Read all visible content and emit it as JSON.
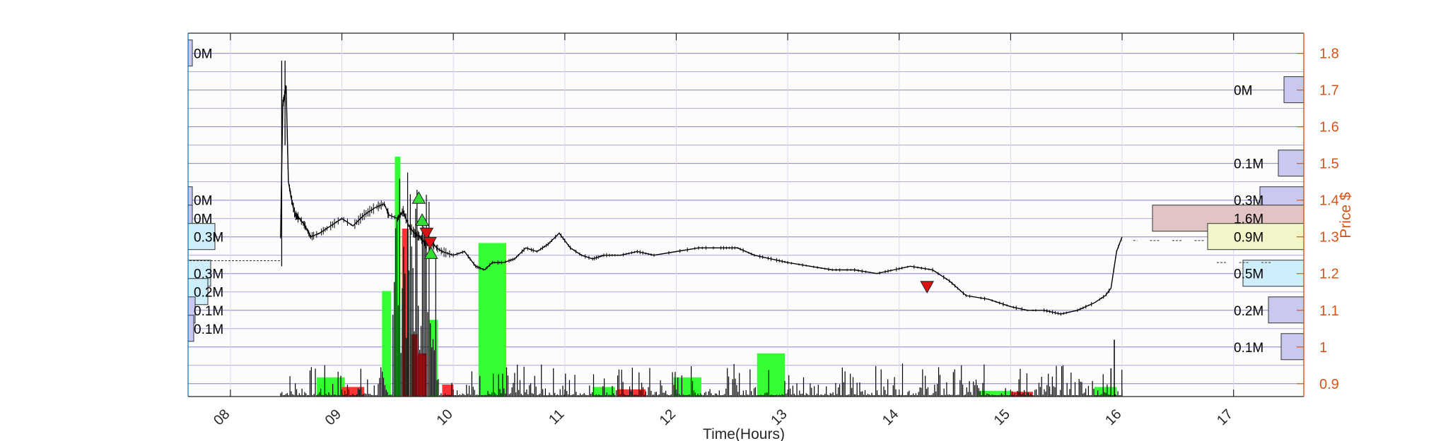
{
  "chart_data": {
    "type": "line",
    "xlabel": "Time(Hours)",
    "ylabel": "Price $",
    "xlim": [
      7.62,
      17.63
    ],
    "ylim": [
      0.865,
      1.855
    ],
    "x_ticks": [
      8,
      9,
      10,
      11,
      12,
      13,
      14,
      15,
      16,
      17
    ],
    "x_tick_labels": [
      "08",
      "09",
      "10",
      "11",
      "12",
      "13",
      "14",
      "15",
      "16",
      "17"
    ],
    "y_ticks": [
      0.9,
      1,
      1.1,
      1.2,
      1.3,
      1.4,
      1.5,
      1.6,
      1.7,
      1.8
    ],
    "y_tick_labels": [
      "0.9",
      "1",
      "1.1",
      "1.2",
      "1.3",
      "1.4",
      "1.5",
      "1.6",
      "1.7",
      "1.8"
    ],
    "grid": true,
    "colors": {
      "price": "#000000",
      "right_axis": "#d95319",
      "left_axis": "#0072bd",
      "grid": "#6b6bd9",
      "buy_volume": "#33ff33",
      "sell_volume": "#ff3333",
      "buy_marker": "#33dd33",
      "sell_marker": "#dd1111"
    },
    "price_series": {
      "name": "",
      "x": [
        8.45,
        8.47,
        8.5,
        8.52,
        8.55,
        8.58,
        8.62,
        8.67,
        8.72,
        8.8,
        8.9,
        9.0,
        9.1,
        9.2,
        9.3,
        9.38,
        9.42,
        9.5,
        9.55,
        9.6,
        9.65,
        9.7,
        9.75,
        9.8,
        9.85,
        9.9,
        10.0,
        10.1,
        10.2,
        10.28,
        10.35,
        10.45,
        10.55,
        10.65,
        10.75,
        10.85,
        10.95,
        11.05,
        11.15,
        11.25,
        11.35,
        11.5,
        11.65,
        11.8,
        12.0,
        12.2,
        12.4,
        12.55,
        12.7,
        12.85,
        13.0,
        13.2,
        13.4,
        13.6,
        13.8,
        13.95,
        14.1,
        14.3,
        14.45,
        14.6,
        14.8,
        15.0,
        15.15,
        15.3,
        15.45,
        15.6,
        15.75,
        15.85,
        15.9,
        15.95,
        16.0
      ],
      "values": [
        1.3,
        1.66,
        1.71,
        1.45,
        1.4,
        1.36,
        1.35,
        1.33,
        1.3,
        1.31,
        1.33,
        1.35,
        1.33,
        1.36,
        1.38,
        1.39,
        1.36,
        1.35,
        1.37,
        1.33,
        1.31,
        1.3,
        1.28,
        1.29,
        1.27,
        1.26,
        1.25,
        1.26,
        1.22,
        1.21,
        1.23,
        1.23,
        1.24,
        1.27,
        1.26,
        1.28,
        1.31,
        1.27,
        1.25,
        1.24,
        1.25,
        1.25,
        1.26,
        1.25,
        1.26,
        1.27,
        1.27,
        1.27,
        1.25,
        1.24,
        1.23,
        1.22,
        1.21,
        1.21,
        1.2,
        1.21,
        1.22,
        1.21,
        1.18,
        1.14,
        1.13,
        1.11,
        1.1,
        1.1,
        1.09,
        1.1,
        1.12,
        1.14,
        1.16,
        1.26,
        1.3
      ]
    },
    "extended_hours": {
      "x": [
        16.0,
        16.1,
        16.25,
        16.45,
        16.65,
        16.85,
        17.05,
        17.25,
        17.45
      ],
      "values": [
        1.29,
        1.29,
        1.29,
        1.29,
        1.29,
        1.23,
        1.23,
        1.23,
        1.23
      ]
    },
    "volume_bars": {
      "comment_units": "volume in shares",
      "items": [
        {
          "x": 9.4,
          "width": 0.08,
          "value": 2200000,
          "side": "buy"
        },
        {
          "x": 9.5,
          "width": 0.05,
          "value": 5000000,
          "side": "buy"
        },
        {
          "x": 9.57,
          "width": 0.06,
          "value": 3500000,
          "side": "sell"
        },
        {
          "x": 9.65,
          "width": 0.06,
          "value": 1300000,
          "side": "sell"
        },
        {
          "x": 9.72,
          "width": 0.08,
          "value": 900000,
          "side": "sell"
        },
        {
          "x": 9.82,
          "width": 0.08,
          "value": 1600000,
          "side": "buy"
        },
        {
          "x": 9.95,
          "width": 0.1,
          "value": 250000,
          "side": "sell"
        },
        {
          "x": 10.35,
          "width": 0.25,
          "value": 3200000,
          "side": "buy"
        },
        {
          "x": 8.9,
          "width": 0.25,
          "value": 400000,
          "side": "buy"
        },
        {
          "x": 9.1,
          "width": 0.2,
          "value": 200000,
          "side": "sell"
        },
        {
          "x": 11.35,
          "width": 0.2,
          "value": 200000,
          "side": "buy"
        },
        {
          "x": 11.6,
          "width": 0.25,
          "value": 150000,
          "side": "sell"
        },
        {
          "x": 12.1,
          "width": 0.25,
          "value": 400000,
          "side": "buy"
        },
        {
          "x": 12.85,
          "width": 0.25,
          "value": 900000,
          "side": "buy"
        },
        {
          "x": 14.85,
          "width": 0.3,
          "value": 120000,
          "side": "buy"
        },
        {
          "x": 15.1,
          "width": 0.2,
          "value": 100000,
          "side": "sell"
        },
        {
          "x": 15.85,
          "width": 0.2,
          "value": 200000,
          "side": "buy"
        }
      ]
    },
    "trade_markers": [
      {
        "x": 9.69,
        "y": 1.405,
        "type": "buy"
      },
      {
        "x": 9.72,
        "y": 1.345,
        "type": "buy"
      },
      {
        "x": 9.76,
        "y": 1.31,
        "type": "sell"
      },
      {
        "x": 9.79,
        "y": 1.285,
        "type": "sell"
      },
      {
        "x": 9.8,
        "y": 1.255,
        "type": "buy"
      },
      {
        "x": 14.25,
        "y": 1.165,
        "type": "sell"
      }
    ],
    "volume_profile_right": [
      {
        "price": 1.7,
        "value": 0,
        "label": "0M",
        "color": "#c8c8f0"
      },
      {
        "price": 1.5,
        "value": 100000,
        "label": "0.1M",
        "color": "#c8c8f0"
      },
      {
        "price": 1.4,
        "value": 300000,
        "label": "0.3M",
        "color": "#c8c8f0"
      },
      {
        "price": 1.35,
        "value": 1600000,
        "label": "1.6M",
        "color": "#e2c4c4"
      },
      {
        "price": 1.3,
        "value": 900000,
        "label": "0.9M",
        "color": "#f2f5c8"
      },
      {
        "price": 1.2,
        "value": 500000,
        "label": "0.5M",
        "color": "#cdeefa"
      },
      {
        "price": 1.1,
        "value": 200000,
        "label": "0.2M",
        "color": "#c8c8f0"
      },
      {
        "price": 1.0,
        "value": 100000,
        "label": "0.1M",
        "color": "#c8c8f0"
      }
    ],
    "volume_profile_left": [
      {
        "price": 1.8,
        "label": "0M"
      },
      {
        "price": 1.4,
        "label": "0M"
      },
      {
        "price": 1.35,
        "label": "0M"
      },
      {
        "price": 1.3,
        "label": "0.3M"
      },
      {
        "price": 1.2,
        "label": "0.3M"
      },
      {
        "price": 1.15,
        "label": "0.2M"
      },
      {
        "price": 1.1,
        "label": "0.1M"
      },
      {
        "price": 1.05,
        "label": "0.1M"
      }
    ]
  }
}
